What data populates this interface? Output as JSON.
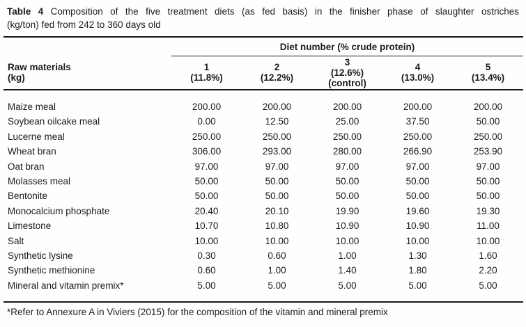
{
  "title": {
    "label": "Table 4",
    "line1": "Composition of the five treatment diets (as fed basis) in the finisher phase of slaughter ostriches",
    "line2": "(kg/ton) fed from 242 to 360 days old"
  },
  "table": {
    "row_header": {
      "line1": "Raw materials",
      "line2": "(kg)"
    },
    "span_header": "Diet number (% crude protein)",
    "columns": [
      {
        "num": "1",
        "pct": "(11.8%)"
      },
      {
        "num": "2",
        "pct": "(12.2%)"
      },
      {
        "num": "3",
        "pct": "(12.6%)",
        "note": "(control)"
      },
      {
        "num": "4",
        "pct": "(13.0%)"
      },
      {
        "num": "5",
        "pct": "(13.4%)"
      }
    ],
    "rows": [
      {
        "label": "Maize meal",
        "values": [
          "200.00",
          "200.00",
          "200.00",
          "200.00",
          "200.00"
        ]
      },
      {
        "label": "Soybean oilcake meal",
        "values": [
          "0.00",
          "12.50",
          "25.00",
          "37.50",
          "50.00"
        ]
      },
      {
        "label": "Lucerne meal",
        "values": [
          "250.00",
          "250.00",
          "250.00",
          "250.00",
          "250.00"
        ]
      },
      {
        "label": "Wheat bran",
        "values": [
          "306.00",
          "293.00",
          "280.00",
          "266.90",
          "253.90"
        ]
      },
      {
        "label": "Oat bran",
        "values": [
          "97.00",
          "97.00",
          "97.00",
          "97.00",
          "97.00"
        ]
      },
      {
        "label": "Molasses meal",
        "values": [
          "50.00",
          "50.00",
          "50.00",
          "50.00",
          "50.00"
        ]
      },
      {
        "label": "Bentonite",
        "values": [
          "50.00",
          "50.00",
          "50.00",
          "50.00",
          "50.00"
        ]
      },
      {
        "label": "Monocalcium phosphate",
        "values": [
          "20.40",
          "20.10",
          "19.90",
          "19.60",
          "19.30"
        ]
      },
      {
        "label": "Limestone",
        "values": [
          "10.70",
          "10.80",
          "10.90",
          "10.90",
          "11.00"
        ]
      },
      {
        "label": "Salt",
        "values": [
          "10.00",
          "10.00",
          "10.00",
          "10.00",
          "10.00"
        ]
      },
      {
        "label": "Synthetic lysine",
        "values": [
          "0.30",
          "0.60",
          "1.00",
          "1.30",
          "1.60"
        ]
      },
      {
        "label": "Synthetic methionine",
        "values": [
          "0.60",
          "1.00",
          "1.40",
          "1.80",
          "2.20"
        ]
      },
      {
        "label": "Mineral and vitamin premix*",
        "values": [
          "5.00",
          "5.00",
          "5.00",
          "5.00",
          "5.00"
        ]
      }
    ]
  },
  "footnote": "*Refer to Annexure A in Viviers (2015) for the composition of the vitamin and mineral premix"
}
